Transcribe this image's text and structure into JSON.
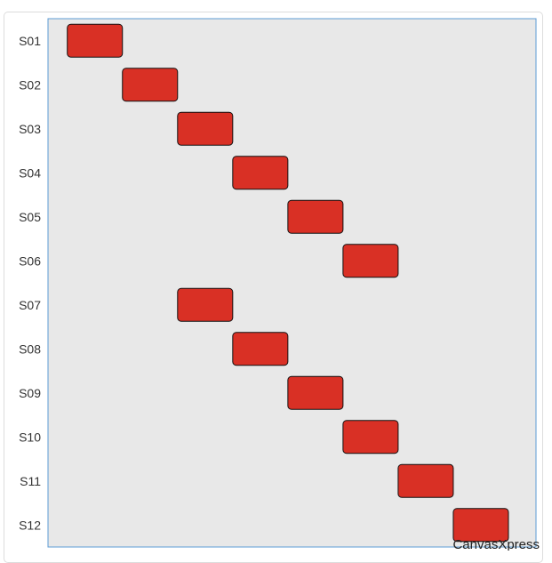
{
  "chart_data": {
    "type": "gantt",
    "categories": [
      "S01",
      "S02",
      "S03",
      "S04",
      "S05",
      "S06",
      "S07",
      "S08",
      "S09",
      "S10",
      "S11",
      "S12"
    ],
    "tasks": [
      {
        "label": "S01",
        "start": 0,
        "end": 1
      },
      {
        "label": "S02",
        "start": 1,
        "end": 2
      },
      {
        "label": "S03",
        "start": 2,
        "end": 3
      },
      {
        "label": "S04",
        "start": 3,
        "end": 4
      },
      {
        "label": "S05",
        "start": 4,
        "end": 5
      },
      {
        "label": "S06",
        "start": 5,
        "end": 6
      },
      {
        "label": "S07",
        "start": 2,
        "end": 3
      },
      {
        "label": "S08",
        "start": 3,
        "end": 4
      },
      {
        "label": "S09",
        "start": 4,
        "end": 5
      },
      {
        "label": "S10",
        "start": 5,
        "end": 6
      },
      {
        "label": "S11",
        "start": 6,
        "end": 7
      },
      {
        "label": "S12",
        "start": 7,
        "end": 8
      }
    ],
    "xlim": [
      -0.35,
      8.5
    ],
    "bar_color": "#d93025",
    "bar_stroke": "#111111",
    "plot_background": "#e8e8e8",
    "plot_border": "#5b9bd5",
    "grid": false,
    "legend": "none"
  },
  "watermark": "CanvasXpress"
}
